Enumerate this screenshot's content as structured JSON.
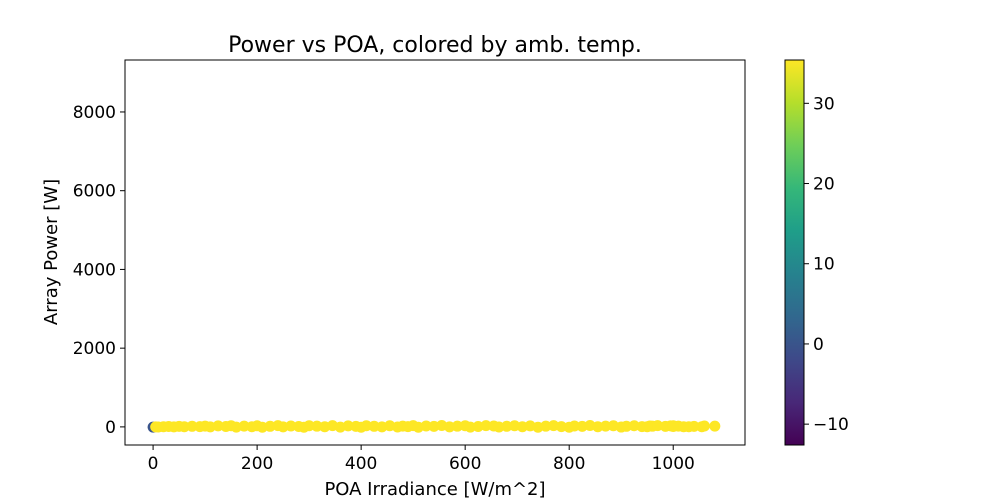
{
  "chart_data": {
    "type": "scatter",
    "title": "Power vs POA, colored by amb. temp.",
    "xlabel": "POA Irradiance [W/m^2]",
    "ylabel": "Array Power [W]",
    "xlim": [
      -54,
      1138
    ],
    "ylim": [
      -460,
      9320
    ],
    "xticks": [
      0,
      200,
      400,
      600,
      800,
      1000
    ],
    "yticks": [
      0,
      2000,
      4000,
      6000,
      8000
    ],
    "grid": false,
    "colorbar": {
      "colormap": "viridis",
      "range": [
        -12.6,
        35.4
      ],
      "ticks": [
        -10,
        0,
        10,
        20,
        30
      ]
    },
    "point_fields": [
      "poa",
      "power",
      "amb_temp"
    ],
    "points": [
      [
        0,
        -5,
        0
      ],
      [
        5,
        0,
        42
      ],
      [
        10,
        -3,
        86
      ],
      [
        20,
        5,
        166
      ],
      [
        30,
        10,
        245
      ],
      [
        40,
        0,
        338
      ],
      [
        50,
        12,
        410
      ],
      [
        60,
        5,
        500
      ],
      [
        75,
        15,
        596
      ],
      [
        90,
        8,
        740
      ],
      [
        100,
        20,
        785
      ],
      [
        110,
        2,
        925
      ],
      [
        125,
        25,
        965
      ],
      [
        140,
        10,
        1141
      ],
      [
        150,
        30,
        1133
      ],
      [
        160,
        -5,
        1376
      ],
      [
        175,
        20,
        1374
      ],
      [
        190,
        5,
        1580
      ],
      [
        200,
        28,
        1526
      ],
      [
        210,
        -8,
        1830
      ],
      [
        225,
        15,
        1800
      ],
      [
        240,
        32,
        1800
      ],
      [
        250,
        0,
        2113
      ],
      [
        265,
        22,
        2060
      ],
      [
        280,
        10,
        2282
      ],
      [
        290,
        -10,
        2538
      ],
      [
        300,
        30,
        2265
      ],
      [
        315,
        18,
        2490
      ],
      [
        330,
        5,
        2740
      ],
      [
        345,
        33,
        2573
      ],
      [
        360,
        -5,
        3096
      ],
      [
        375,
        25,
        2950
      ],
      [
        390,
        12,
        3160
      ],
      [
        400,
        -8,
        3476
      ],
      [
        410,
        30,
        3096
      ],
      [
        425,
        15,
        3410
      ],
      [
        440,
        2,
        3692
      ],
      [
        455,
        28,
        3520
      ],
      [
        470,
        -3,
        4014
      ],
      [
        480,
        20,
        3768
      ],
      [
        490,
        8,
        4022
      ],
      [
        500,
        32,
        3745
      ],
      [
        510,
        -10,
        4460
      ],
      [
        525,
        24,
        4100
      ],
      [
        540,
        12,
        4385
      ],
      [
        555,
        35,
        4107
      ],
      [
        570,
        0,
        4816
      ],
      [
        585,
        18,
        4600
      ],
      [
        600,
        28,
        4530
      ],
      [
        610,
        -6,
        5264
      ],
      [
        625,
        10,
        5094
      ],
      [
        640,
        33,
        4815
      ],
      [
        655,
        22,
        5130
      ],
      [
        665,
        -2,
        5660
      ],
      [
        680,
        15,
        5440
      ],
      [
        695,
        30,
        5247
      ],
      [
        710,
        5,
        5893
      ],
      [
        725,
        25,
        5580
      ],
      [
        740,
        -8,
        6430
      ],
      [
        755,
        18,
        5975
      ],
      [
        770,
        32,
        5765
      ],
      [
        785,
        8,
        6586
      ],
      [
        800,
        -10,
        7000
      ],
      [
        810,
        22,
        6350
      ],
      [
        825,
        12,
        6720
      ],
      [
        840,
        35,
        6216
      ],
      [
        855,
        3,
        7148
      ],
      [
        870,
        20,
        6830
      ],
      [
        885,
        28,
        6720
      ],
      [
        900,
        -4,
        7713
      ],
      [
        910,
        15,
        7280
      ],
      [
        925,
        30,
        6984
      ],
      [
        940,
        8,
        7717
      ],
      [
        950,
        5,
        7850
      ],
      [
        955,
        22,
        7500
      ],
      [
        960,
        18,
        8050
      ],
      [
        970,
        32,
        7310
      ],
      [
        985,
        12,
        8050
      ],
      [
        995,
        25,
        7770
      ],
      [
        1000,
        10,
        8150
      ],
      [
        1000,
        28,
        7600
      ],
      [
        1010,
        20,
        7930
      ],
      [
        1020,
        3,
        8530
      ],
      [
        1030,
        5,
        8700
      ],
      [
        1040,
        12,
        8500
      ],
      [
        1055,
        4,
        8880
      ],
      [
        1060,
        22,
        8380
      ],
      [
        1080,
        20,
        8440
      ]
    ]
  }
}
